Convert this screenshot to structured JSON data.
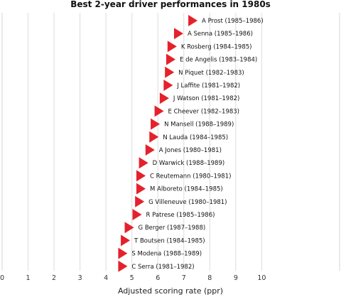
{
  "chart_data": {
    "type": "scatter",
    "title": "Best 2-year driver performances in 1980s",
    "xlabel": "Adjusted scoring rate (ppr)",
    "ylabel": "",
    "xlim": [
      0,
      13
    ],
    "x_ticks": [
      0,
      1,
      2,
      3,
      4,
      5,
      6,
      7,
      8,
      9,
      10
    ],
    "grid": "vertical",
    "marker": "triangle-right",
    "marker_color": "#e5212b",
    "series": [
      {
        "points": [
          {
            "label": "A Prost (1985–1986)",
            "x": 7.35
          },
          {
            "label": "A Senna (1985–1986)",
            "x": 6.8
          },
          {
            "label": "K Rosberg (1984–1985)",
            "x": 6.55
          },
          {
            "label": "E de Angelis (1983–1984)",
            "x": 6.5
          },
          {
            "label": "N Piquet (1982–1983)",
            "x": 6.45
          },
          {
            "label": "J Laffite (1981–1982)",
            "x": 6.4
          },
          {
            "label": "J Watson (1981–1982)",
            "x": 6.25
          },
          {
            "label": "E Cheever (1982–1983)",
            "x": 6.05
          },
          {
            "label": "N Mansell (1988–1989)",
            "x": 5.9
          },
          {
            "label": "N Lauda (1984–1985)",
            "x": 5.85
          },
          {
            "label": "A Jones (1980–1981)",
            "x": 5.7
          },
          {
            "label": "D Warwick (1988–1989)",
            "x": 5.45
          },
          {
            "label": "C Reutemann (1980–1981)",
            "x": 5.35
          },
          {
            "label": "M Alboreto (1984–1985)",
            "x": 5.35
          },
          {
            "label": "G Villeneuve (1980–1981)",
            "x": 5.3
          },
          {
            "label": "R Patrese (1985–1986)",
            "x": 5.2
          },
          {
            "label": "G Berger (1987–1988)",
            "x": 4.9
          },
          {
            "label": "T Boutsen (1984–1985)",
            "x": 4.75
          },
          {
            "label": "S Modena (1988–1989)",
            "x": 4.65
          },
          {
            "label": "C Serra (1981–1982)",
            "x": 4.65
          }
        ]
      }
    ]
  }
}
